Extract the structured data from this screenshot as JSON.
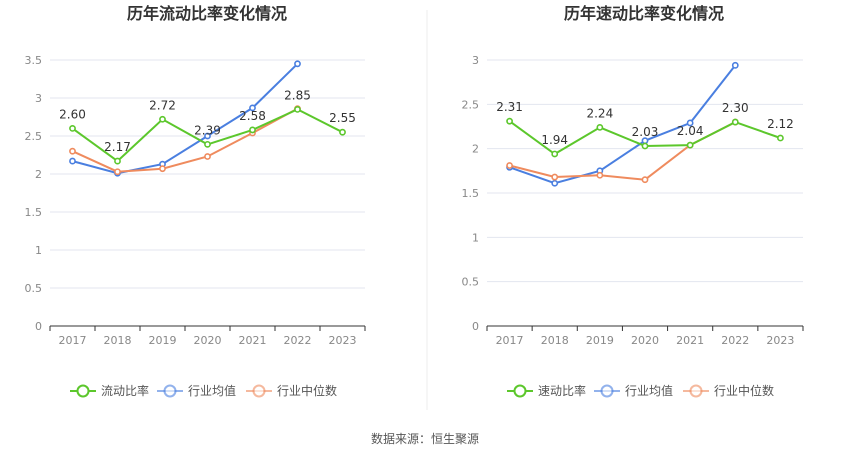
{
  "colors": {
    "company": "#5cc72c",
    "industry_avg": "#4a7fe0",
    "industry_median": "#ef8b5e",
    "grid": "#e3e6ef",
    "axis": "#333333"
  },
  "source": "数据来源：恒生聚源",
  "chart_data": [
    {
      "type": "line",
      "title": "历年流动比率变化情况",
      "categories": [
        "2017",
        "2018",
        "2019",
        "2020",
        "2021",
        "2022",
        "2023"
      ],
      "ylim": [
        0,
        3.5
      ],
      "yticks": [
        "0",
        "0.5",
        "1",
        "1.5",
        "2",
        "2.5",
        "3",
        "3.5"
      ],
      "grid": true,
      "legend_position": "bottom",
      "series": [
        {
          "name": "流动比率",
          "values": [
            2.6,
            2.17,
            2.72,
            2.39,
            2.58,
            2.85,
            2.55
          ],
          "labels": [
            "2.60",
            "2.17",
            "2.72",
            "2.39",
            "2.58",
            "2.85",
            "2.55"
          ]
        },
        {
          "name": "行业均值",
          "values": [
            2.17,
            2.01,
            2.13,
            2.5,
            2.87,
            3.45,
            null
          ]
        },
        {
          "name": "行业中位数",
          "values": [
            2.3,
            2.03,
            2.07,
            2.23,
            2.54,
            2.86,
            null
          ]
        }
      ]
    },
    {
      "type": "line",
      "title": "历年速动比率变化情况",
      "categories": [
        "2017",
        "2018",
        "2019",
        "2020",
        "2021",
        "2022",
        "2023"
      ],
      "ylim": [
        0,
        3
      ],
      "yticks": [
        "0",
        "0.5",
        "1",
        "1.5",
        "2",
        "2.5",
        "3"
      ],
      "grid": true,
      "legend_position": "bottom",
      "series": [
        {
          "name": "速动比率",
          "values": [
            2.31,
            1.94,
            2.24,
            2.03,
            2.04,
            2.3,
            2.12
          ],
          "labels": [
            "2.31",
            "1.94",
            "2.24",
            "2.03",
            "2.04",
            "2.30",
            "2.12"
          ]
        },
        {
          "name": "行业均值",
          "values": [
            1.79,
            1.61,
            1.75,
            2.09,
            2.29,
            2.94,
            null
          ]
        },
        {
          "name": "行业中位数",
          "values": [
            1.81,
            1.68,
            1.7,
            1.65,
            2.04,
            2.3,
            null
          ]
        }
      ]
    }
  ]
}
